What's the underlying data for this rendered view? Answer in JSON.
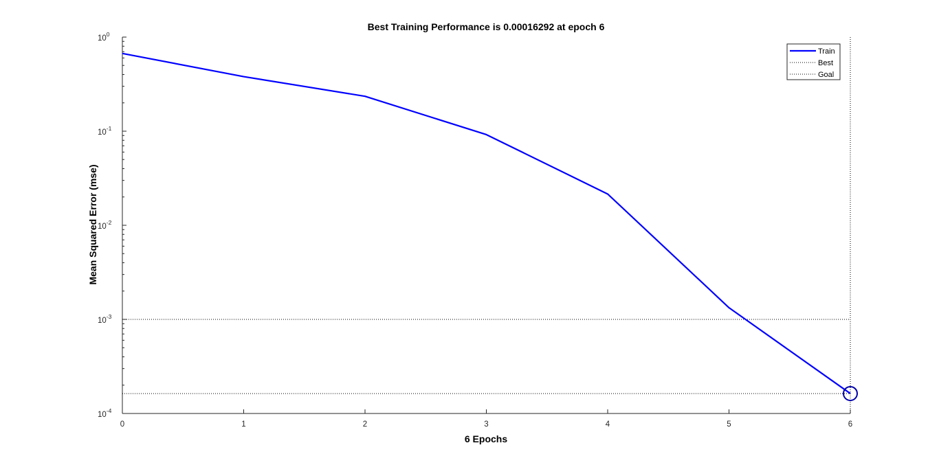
{
  "chart_data": {
    "type": "line",
    "title": "Best Training Performance is 0.00016292 at epoch 6",
    "xlabel": "6 Epochs",
    "ylabel": "Mean Squared Error  (mse)",
    "xlim": [
      0,
      6
    ],
    "ylim": [
      0.0001,
      1
    ],
    "yscale": "log",
    "grid": false,
    "legend_position": "top-right",
    "x_ticks": [
      "0",
      "1",
      "2",
      "3",
      "4",
      "5",
      "6"
    ],
    "y_ticks": [
      {
        "value": 1,
        "base": "10",
        "exp": "0"
      },
      {
        "value": 0.1,
        "base": "10",
        "exp": "-1"
      },
      {
        "value": 0.01,
        "base": "10",
        "exp": "-2"
      },
      {
        "value": 0.001,
        "base": "10",
        "exp": "-3"
      },
      {
        "value": 0.0001,
        "base": "10",
        "exp": "-4"
      }
    ],
    "series": [
      {
        "name": "Train",
        "color": "#0000ff",
        "style": "solid",
        "x": [
          0,
          1,
          2,
          3,
          4,
          5,
          6
        ],
        "y": [
          0.67,
          0.38,
          0.235,
          0.092,
          0.0215,
          0.00133,
          0.00016292
        ]
      }
    ],
    "best": {
      "name": "Best",
      "epoch": 6,
      "value": 0.00016292,
      "color": "#000000",
      "style": "dotted",
      "marker": "circle",
      "marker_color": "#0000aa"
    },
    "goal": {
      "name": "Goal",
      "value": 0.001,
      "color": "#000000",
      "style": "dotted"
    }
  }
}
